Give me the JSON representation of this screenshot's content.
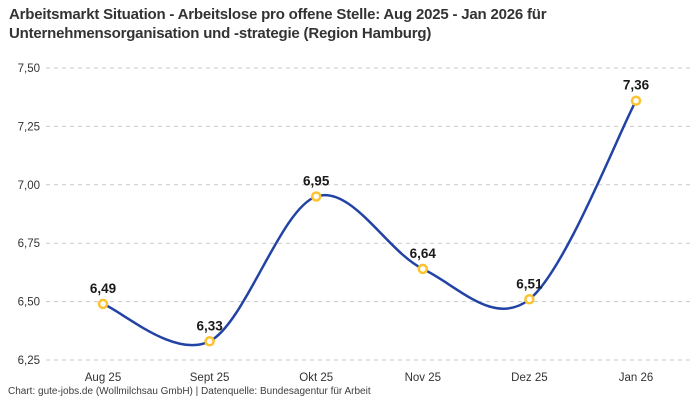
{
  "header": {
    "title_line1": "Arbeitsmarkt Situation - Arbeitslose pro offene Stelle: Aug 2025 - Jan 2026 für",
    "title_line2": "Unternehmensorganisation und -strategie (Region Hamburg)"
  },
  "footer": {
    "text": "Chart: gute-jobs.de (Wollmilchsau GmbH) | Datenquelle: Bundesagentur für Arbeit"
  },
  "chart_data": {
    "type": "line",
    "title": "Arbeitsmarkt Situation - Arbeitslose pro offene Stelle: Aug 2025 - Jan 2026 für Unternehmensorganisation und -strategie (Region Hamburg)",
    "categories": [
      "Aug 25",
      "Sept 25",
      "Okt 25",
      "Nov 25",
      "Dez 25",
      "Jan 26"
    ],
    "values": [
      6.49,
      6.33,
      6.95,
      6.64,
      6.51,
      7.36
    ],
    "value_labels": [
      "6,49",
      "6,33",
      "6,95",
      "6,64",
      "6,51",
      "7,36"
    ],
    "xlabel": "",
    "ylabel": "",
    "ylim": [
      6.25,
      7.5
    ],
    "yticks": [
      6.25,
      6.5,
      6.75,
      7.0,
      7.25,
      7.5
    ],
    "ytick_labels": [
      "6,25",
      "6,50",
      "6,75",
      "7,00",
      "7,25",
      "7,50"
    ],
    "grid": "horizontal-dashed",
    "legend": "none",
    "line_smooth": true,
    "colors": {
      "line": "#2243a5",
      "marker_ring": "#fdc32f",
      "marker_fill": "#ffffff",
      "grid": "#c9c9c9",
      "title": "#333333",
      "axis_text": "#333333",
      "value_label": "#1a1a1a"
    }
  }
}
